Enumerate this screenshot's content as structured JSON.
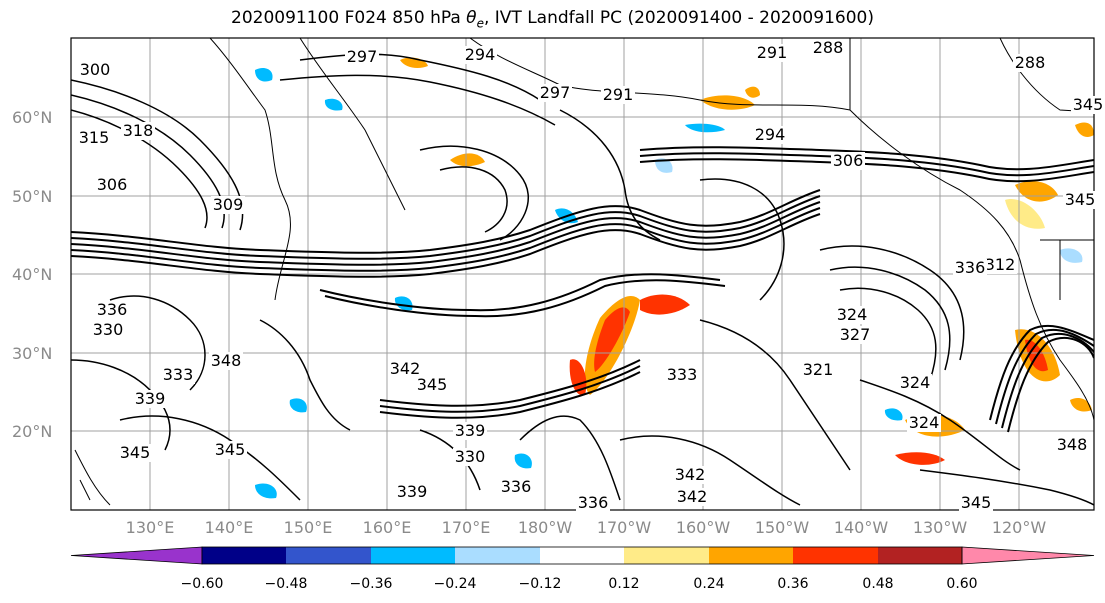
{
  "title_prefix": "2020091100 F024 850 hPa ",
  "title_symbol": "θ",
  "title_sub": "e",
  "title_suffix": ", IVT Landfall PC (2020091400 - 2020091600)",
  "lat_labels": [
    "60°N",
    "50°N",
    "40°N",
    "30°N",
    "20°N"
  ],
  "lon_labels": [
    "130°E",
    "140°E",
    "150°E",
    "160°E",
    "170°E",
    "180°W",
    "170°W",
    "160°W",
    "150°W",
    "140°W",
    "130°W",
    "120°W"
  ],
  "contour_labels": [
    "297",
    "294",
    "291",
    "288",
    "288",
    "300",
    "315",
    "318",
    "306",
    "309",
    "297",
    "291",
    "294",
    "306",
    "312",
    "324",
    "336",
    "330",
    "348",
    "333",
    "339",
    "345",
    "342",
    "345",
    "339",
    "336",
    "330",
    "342",
    "339",
    "345",
    "342",
    "345",
    "336",
    "333",
    "321",
    "327",
    "324",
    "324",
    "336",
    "348",
    "345",
    "345"
  ],
  "colorbar": {
    "colors": [
      "#9933cc",
      "#000088",
      "#3355cc",
      "#00bbff",
      "#aaddff",
      "#ffffff",
      "#ffeb88",
      "#ffa500",
      "#ff3300",
      "#b22222",
      "#ff88aa"
    ],
    "ticks": [
      "−0.60",
      "−0.48",
      "−0.36",
      "−0.24",
      "−0.12",
      "0.12",
      "0.24",
      "0.36",
      "0.48",
      "0.60"
    ]
  }
}
